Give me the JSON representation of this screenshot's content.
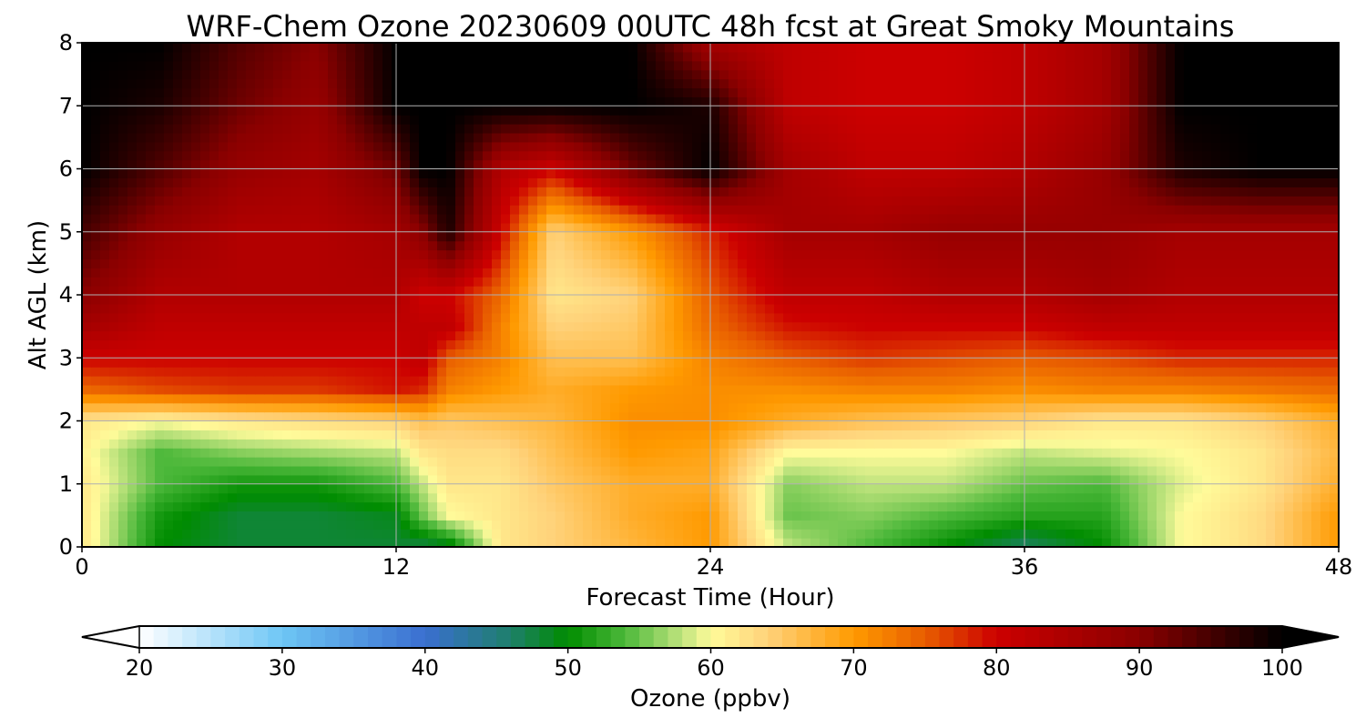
{
  "chart_data": {
    "type": "heatmap",
    "title": "WRF-Chem Ozone  20230609 00UTC 48h fcst at Great Smoky Mountains",
    "xlabel": "Forecast Time (Hour)",
    "ylabel": "Alt AGL (km)",
    "xlim": [
      0,
      48
    ],
    "ylim": [
      0,
      8
    ],
    "x_ticks": [
      "0",
      "12",
      "24",
      "36",
      "48"
    ],
    "y_ticks": [
      "0",
      "1",
      "2",
      "3",
      "4",
      "5",
      "6",
      "7",
      "8"
    ],
    "grid": true,
    "x": [
      0,
      3,
      6,
      9,
      12,
      13,
      14,
      16,
      18,
      21,
      24,
      27,
      30,
      33,
      36,
      39,
      42,
      45,
      48
    ],
    "y": [
      0,
      0.5,
      1,
      1.5,
      2,
      2.5,
      3,
      3.5,
      4,
      5,
      6,
      7,
      8
    ],
    "z": [
      [
        62,
        50,
        48,
        48,
        48,
        47,
        48,
        62,
        64,
        67,
        70,
        58,
        54,
        50,
        46,
        50,
        60,
        63,
        70
      ],
      [
        62,
        51,
        48,
        48,
        49,
        55,
        60,
        62,
        64,
        68,
        70,
        55,
        56,
        54,
        52,
        52,
        60,
        63,
        70
      ],
      [
        62,
        54,
        51,
        51,
        54,
        58,
        62,
        62,
        65,
        68,
        68,
        56,
        58,
        58,
        55,
        54,
        59,
        62,
        68
      ],
      [
        61,
        54,
        56,
        57,
        58,
        62,
        63,
        63,
        66,
        70,
        69,
        60,
        60,
        60,
        58,
        59,
        60,
        62,
        67
      ],
      [
        62,
        60,
        62,
        63,
        64,
        66,
        65,
        66,
        67,
        71,
        71,
        68,
        66,
        65,
        64,
        62,
        62,
        64,
        68
      ],
      [
        74,
        76,
        77,
        77,
        79,
        78,
        72,
        70,
        68,
        70,
        71,
        71,
        72,
        72,
        71,
        72,
        72,
        73,
        74
      ],
      [
        80,
        80,
        80,
        80,
        80,
        82,
        75,
        72,
        66,
        66,
        72,
        75,
        77,
        76,
        75,
        76,
        78,
        78,
        78
      ],
      [
        86,
        82,
        82,
        82,
        82,
        82,
        82,
        72,
        64,
        65,
        74,
        79,
        80,
        80,
        80,
        82,
        82,
        82,
        82
      ],
      [
        90,
        84,
        84,
        84,
        84,
        80,
        80,
        74,
        62,
        64,
        75,
        82,
        82,
        84,
        84,
        86,
        84,
        84,
        84
      ],
      [
        95,
        88,
        84,
        84,
        86,
        90,
        98,
        80,
        64,
        70,
        78,
        86,
        86,
        88,
        88,
        88,
        86,
        86,
        86
      ],
      [
        100,
        94,
        88,
        86,
        92,
        100,
        100,
        84,
        80,
        92,
        100,
        86,
        82,
        82,
        84,
        88,
        98,
        100,
        100
      ],
      [
        100,
        98,
        92,
        88,
        100,
        100,
        100,
        100,
        100,
        100,
        98,
        82,
        80,
        80,
        82,
        86,
        100,
        100,
        100
      ],
      [
        100,
        100,
        94,
        90,
        100,
        100,
        100,
        100,
        100,
        100,
        86,
        82,
        80,
        80,
        82,
        86,
        100,
        100,
        100
      ]
    ],
    "colorbar": {
      "label": "Ozone  (ppbv)",
      "min": 20,
      "max": 100,
      "ticks": [
        "20",
        "30",
        "40",
        "50",
        "60",
        "70",
        "80",
        "90",
        "100"
      ],
      "extend": "both",
      "stops": [
        {
          "v": 20,
          "c": "#ffffff"
        },
        {
          "v": 30,
          "c": "#6ec6f5"
        },
        {
          "v": 40,
          "c": "#3a6fd0"
        },
        {
          "v": 46,
          "c": "#1e7f6a"
        },
        {
          "v": 50,
          "c": "#008c00"
        },
        {
          "v": 54,
          "c": "#4cb83a"
        },
        {
          "v": 58,
          "c": "#c0e47e"
        },
        {
          "v": 60,
          "c": "#fffb9a"
        },
        {
          "v": 64,
          "c": "#ffd27a"
        },
        {
          "v": 70,
          "c": "#ff9a00"
        },
        {
          "v": 75,
          "c": "#e85d00"
        },
        {
          "v": 80,
          "c": "#cc0000"
        },
        {
          "v": 90,
          "c": "#8a0000"
        },
        {
          "v": 100,
          "c": "#000000"
        }
      ]
    }
  }
}
